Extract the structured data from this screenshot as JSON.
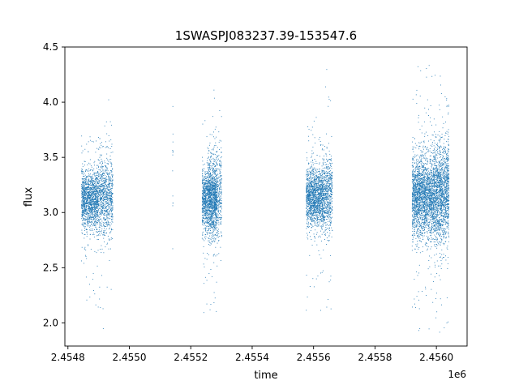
{
  "chart_data": {
    "type": "scatter",
    "title": "1SWASPJ083237.39-153547.6",
    "xlabel": "time",
    "ylabel": "flux",
    "x_offset_label": "1e6",
    "xlim": [
      2.45479,
      2.4561
    ],
    "ylim": [
      1.79,
      4.5
    ],
    "x_ticks": [
      2.4548,
      2.455,
      2.4552,
      2.4554,
      2.4556,
      2.4558,
      2.456
    ],
    "x_tick_labels": [
      "2.4548",
      "2.4550",
      "2.4552",
      "2.4554",
      "2.4556",
      "2.4558",
      "2.4560"
    ],
    "y_ticks": [
      2.0,
      2.5,
      3.0,
      3.5,
      4.0,
      4.5
    ],
    "y_tick_labels": [
      "2.0",
      "2.5",
      "3.0",
      "3.5",
      "4.0",
      "4.5"
    ],
    "grid": false,
    "marker_color": "#1f77b4",
    "series": [
      {
        "clusters": [
          {
            "x_range": [
              2.454843,
              2.454897
            ],
            "center_y": 3.12,
            "spread": 0.13,
            "count": 1400,
            "y_min": 2.1,
            "y_max": 3.7
          },
          {
            "x_range": [
              2.454897,
              2.454945
            ],
            "center_y": 3.15,
            "spread": 0.18,
            "count": 900,
            "y_min": 1.93,
            "y_max": 4.22
          },
          {
            "x_range": [
              2.455139,
              2.455141
            ],
            "center_y": 3.4,
            "spread": 0.5,
            "count": 18,
            "y_min": 2.57,
            "y_max": 4.3
          },
          {
            "x_range": [
              2.455236,
              2.455285
            ],
            "center_y": 3.12,
            "spread": 0.14,
            "count": 1300,
            "y_min": 1.98,
            "y_max": 3.9
          },
          {
            "x_range": [
              2.455255,
              2.4553
            ],
            "center_y": 3.15,
            "spread": 0.2,
            "count": 700,
            "y_min": 1.98,
            "y_max": 4.32
          },
          {
            "x_range": [
              2.455575,
              2.45563
            ],
            "center_y": 3.15,
            "spread": 0.13,
            "count": 1500,
            "y_min": 2.05,
            "y_max": 4.05
          },
          {
            "x_range": [
              2.45563,
              2.45566
            ],
            "center_y": 3.15,
            "spread": 0.17,
            "count": 600,
            "y_min": 1.93,
            "y_max": 4.3
          },
          {
            "x_range": [
              2.45592,
              2.45599
            ],
            "center_y": 3.15,
            "spread": 0.18,
            "count": 2200,
            "y_min": 1.92,
            "y_max": 4.37
          },
          {
            "x_range": [
              2.45599,
              2.45604
            ],
            "center_y": 3.18,
            "spread": 0.22,
            "count": 1600,
            "y_min": 1.9,
            "y_max": 4.38
          }
        ]
      }
    ]
  }
}
